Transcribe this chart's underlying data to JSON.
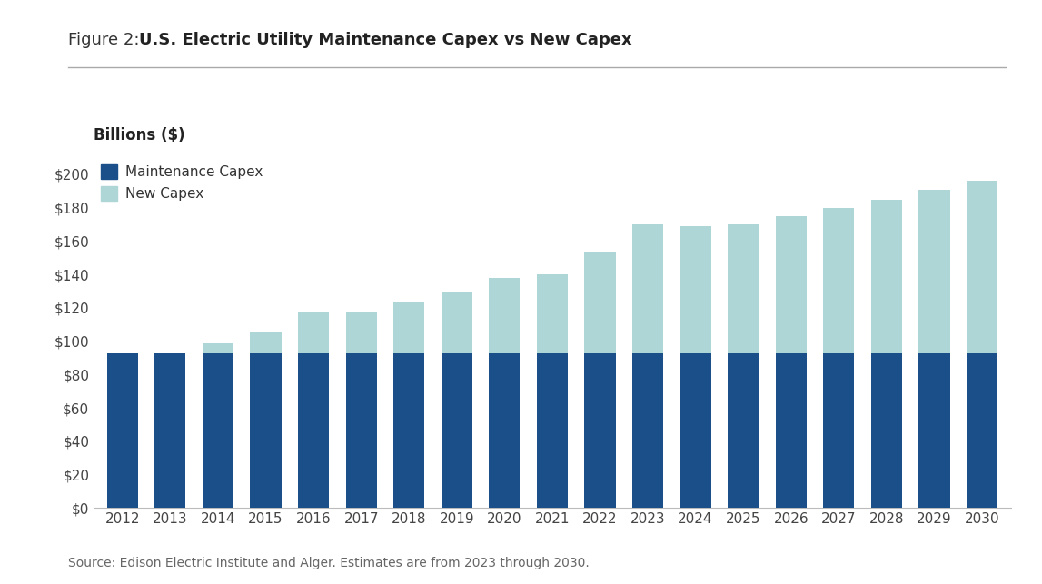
{
  "title_prefix": "Figure 2: ",
  "title_bold": "U.S. Electric Utility Maintenance Capex vs New Capex",
  "billions_label": "Billions ($)",
  "source_text": "Source: Edison Electric Institute and Alger. Estimates are from 2023 through 2030.",
  "years": [
    2012,
    2013,
    2014,
    2015,
    2016,
    2017,
    2018,
    2019,
    2020,
    2021,
    2022,
    2023,
    2024,
    2025,
    2026,
    2027,
    2028,
    2029,
    2030
  ],
  "maintenance_capex": [
    93,
    93,
    93,
    93,
    93,
    93,
    93,
    93,
    93,
    93,
    93,
    93,
    93,
    93,
    93,
    93,
    93,
    93,
    93
  ],
  "total_capex": [
    93,
    93,
    99,
    106,
    117,
    117,
    124,
    129,
    138,
    140,
    153,
    170,
    169,
    170,
    175,
    180,
    185,
    191,
    196
  ],
  "maintenance_color": "#1b4f8a",
  "new_capex_color": "#aed6d6",
  "background_color": "#ffffff",
  "ylim": [
    0,
    210
  ],
  "yticks": [
    0,
    20,
    40,
    60,
    80,
    100,
    120,
    140,
    160,
    180,
    200
  ],
  "legend_maintenance": "Maintenance Capex",
  "legend_new": "New Capex",
  "bar_width": 0.65,
  "title_fontsize": 13,
  "tick_fontsize": 11,
  "legend_fontsize": 11,
  "source_fontsize": 10
}
